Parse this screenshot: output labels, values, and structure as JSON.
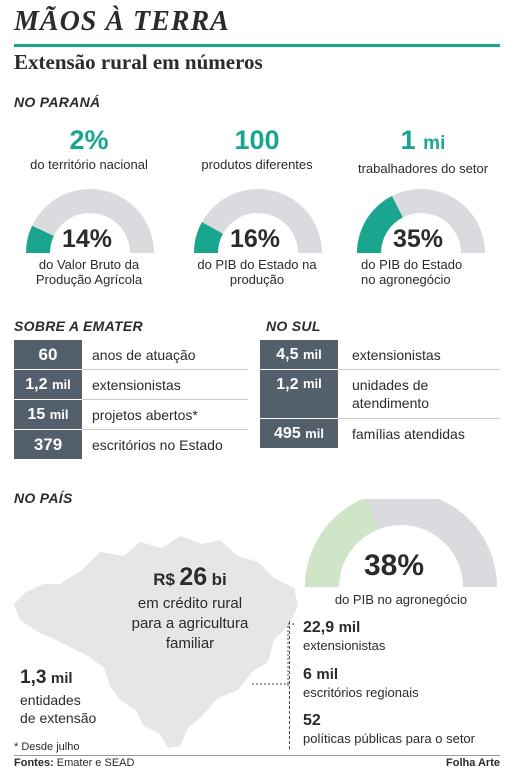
{
  "header": {
    "title": "MÃOS À TERRA",
    "subtitle": "Extensão rural em números"
  },
  "colors": {
    "accent": "#1aa58f",
    "gauge_track": "#d9dbde",
    "gauge_light": "#cfe5c8",
    "table_dark": "#545f6c"
  },
  "parana": {
    "heading": "NO PARANÁ",
    "stats": [
      {
        "value": "2%",
        "unit": "",
        "label": "do território nacional"
      },
      {
        "value": "100",
        "unit": "",
        "label": "produtos diferentes"
      },
      {
        "value": "1",
        "unit": "mi",
        "label": "trabalhadores do setor"
      }
    ],
    "gauges": [
      {
        "percent": 14,
        "label": "14%",
        "caption_1": "do Valor Bruto da",
        "caption_2": "Produção Agrícola"
      },
      {
        "percent": 16,
        "label": "16%",
        "caption_1": "do PIB do Estado na",
        "caption_2": "produção"
      },
      {
        "percent": 35,
        "label": "35%",
        "caption_1": "do PIB do Estado",
        "caption_2": "no agronegócio"
      }
    ]
  },
  "emater": {
    "heading": "SOBRE A EMATER",
    "rows": [
      {
        "num": "60",
        "unit": "",
        "text": "anos de atuação"
      },
      {
        "num": "1,2",
        "unit": "mil",
        "text": "extensionistas"
      },
      {
        "num": "15",
        "unit": "mil",
        "text": "projetos abertos*"
      },
      {
        "num": "379",
        "unit": "",
        "text": "escritórios no Estado"
      }
    ]
  },
  "sul": {
    "heading": "NO SUL",
    "rows": [
      {
        "num": "4,5",
        "unit": "mil",
        "text": "extensionistas",
        "text2": ""
      },
      {
        "num": "1,2",
        "unit": "mil",
        "text": "unidades de",
        "text2": "atendimento"
      },
      {
        "num": "495",
        "unit": "mil",
        "text": "famílias atendidas",
        "text2": ""
      }
    ]
  },
  "pais": {
    "heading": "NO PAÍS",
    "credit": {
      "prefix": "R$",
      "value": "26",
      "unit": "bi",
      "line1": "em crédito rural",
      "line2": "para a agricultura",
      "line3": "familiar"
    },
    "entities": {
      "value": "1,3",
      "unit": "mil",
      "line1": "entidades",
      "line2": "de extensão"
    },
    "gauge": {
      "percent": 38,
      "label": "38%",
      "caption": "do PIB no agronegócio"
    },
    "list": [
      {
        "value": "22,9",
        "unit": "mil",
        "text": "extensionistas"
      },
      {
        "value": "6",
        "unit": "mil",
        "text": "escritórios regionais"
      },
      {
        "value": "52",
        "unit": "",
        "text": "políticas públicas para o setor"
      }
    ]
  },
  "footer": {
    "note": "* Desde julho",
    "sources_label": "Fontes:",
    "sources": "Emater e SEAD",
    "credit": "Folha Arte"
  }
}
